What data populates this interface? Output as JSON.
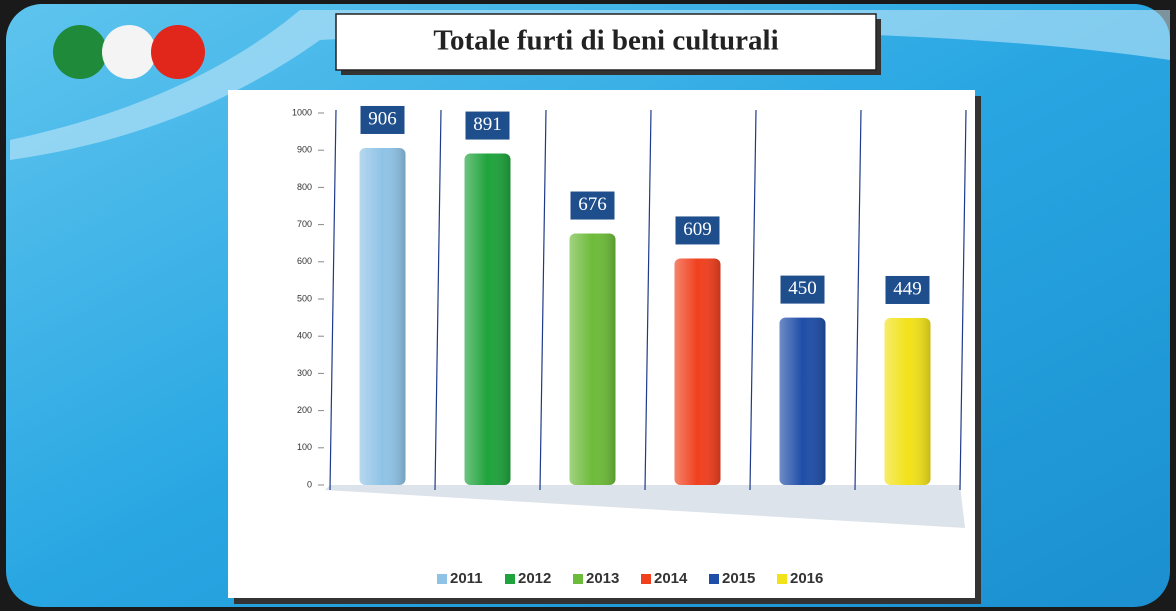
{
  "chart_data": {
    "type": "bar",
    "title": "Totale furti di beni culturali",
    "series": [
      {
        "name": "2011",
        "color": "#8fc3e6",
        "values": [
          906
        ]
      },
      {
        "name": "2012",
        "color": "#1fa33c",
        "values": [
          891
        ]
      },
      {
        "name": "2013",
        "color": "#6dbb3a",
        "values": [
          676
        ]
      },
      {
        "name": "2014",
        "color": "#f0401e",
        "values": [
          609
        ]
      },
      {
        "name": "2015",
        "color": "#1f4ea8",
        "values": [
          450
        ]
      },
      {
        "name": "2016",
        "color": "#f2e21a",
        "values": [
          449
        ]
      }
    ],
    "ylim": [
      0,
      1000
    ],
    "yticks": [
      0,
      100,
      200,
      300,
      400,
      500,
      600,
      700,
      800,
      900,
      1000
    ],
    "grid": true,
    "legend": "bottom"
  }
}
